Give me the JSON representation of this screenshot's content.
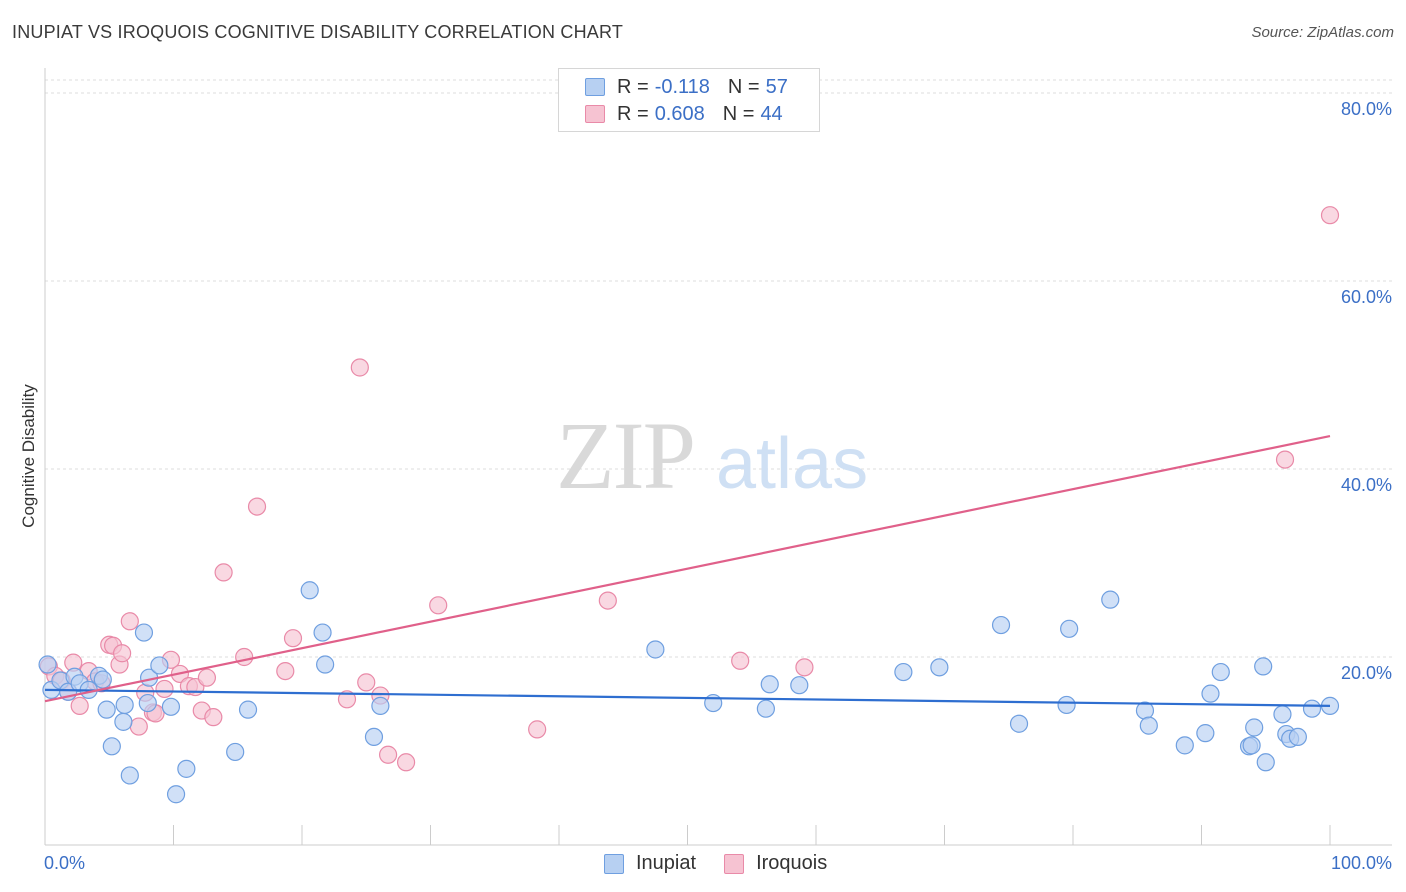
{
  "header": {
    "title": "INUPIAT VS IROQUOIS COGNITIVE DISABILITY CORRELATION CHART",
    "source": "Source: ZipAtlas.com"
  },
  "watermark": {
    "zip": "ZIP",
    "atlas": "atlas"
  },
  "legend": {
    "rows": [
      {
        "r_label": "R =",
        "r_value": "-0.118",
        "n_label": "N =",
        "n_value": "57"
      },
      {
        "r_label": "R =",
        "r_value": "0.608",
        "n_label": "N =",
        "n_value": "44"
      }
    ]
  },
  "bottom_legend": {
    "inupiat": "Inupiat",
    "iroquois": "Iroquois"
  },
  "colors": {
    "inupiat_fill": "#b7d0f2",
    "inupiat_stroke": "#6f9fe0",
    "inupiat_line": "#2e6ed0",
    "iroquois_fill": "#f6c3d2",
    "iroquois_stroke": "#e98aa8",
    "iroquois_line": "#e0608a",
    "axis_text": "#3b6fc6",
    "grid": "#dddddd"
  },
  "chart_data": {
    "type": "scatter",
    "title": "INUPIAT VS IROQUOIS COGNITIVE DISABILITY CORRELATION CHART",
    "xlabel": "",
    "ylabel": "Cognitive Disability",
    "xlim": [
      0,
      100
    ],
    "ylim": [
      0,
      80
    ],
    "x_tick_labels": [
      "0.0%",
      "100.0%"
    ],
    "y_ticks": [
      20,
      40,
      60,
      80
    ],
    "y_tick_labels": [
      "20.0%",
      "40.0%",
      "60.0%",
      "80.0%"
    ],
    "grid": true,
    "legend_position": "top-center",
    "series": [
      {
        "name": "Inupiat",
        "r": -0.118,
        "n": 57,
        "trend": {
          "x": [
            0,
            100
          ],
          "y": [
            16.5,
            14.8
          ]
        },
        "points": [
          [
            0.2,
            19.2
          ],
          [
            0.5,
            16.5
          ],
          [
            1.2,
            17.5
          ],
          [
            1.8,
            16.3
          ],
          [
            2.3,
            17.9
          ],
          [
            2.7,
            17.2
          ],
          [
            3.4,
            16.5
          ],
          [
            4.2,
            18.0
          ],
          [
            4.5,
            17.6
          ],
          [
            4.8,
            14.4
          ],
          [
            5.2,
            10.5
          ],
          [
            6.1,
            13.1
          ],
          [
            6.2,
            14.9
          ],
          [
            6.6,
            7.4
          ],
          [
            7.7,
            22.6
          ],
          [
            8.0,
            15.1
          ],
          [
            8.1,
            17.8
          ],
          [
            8.9,
            19.1
          ],
          [
            9.8,
            14.7
          ],
          [
            10.2,
            5.4
          ],
          [
            11.0,
            8.1
          ],
          [
            14.8,
            9.9
          ],
          [
            15.8,
            14.4
          ],
          [
            20.6,
            27.1
          ],
          [
            21.6,
            22.6
          ],
          [
            21.8,
            19.2
          ],
          [
            25.6,
            11.5
          ],
          [
            26.1,
            14.8
          ],
          [
            47.5,
            20.8
          ],
          [
            52.0,
            15.1
          ],
          [
            56.1,
            14.5
          ],
          [
            56.4,
            17.1
          ],
          [
            58.7,
            17.0
          ],
          [
            66.8,
            18.4
          ],
          [
            69.6,
            18.9
          ],
          [
            74.4,
            23.4
          ],
          [
            75.8,
            12.9
          ],
          [
            79.5,
            14.9
          ],
          [
            79.7,
            23.0
          ],
          [
            82.9,
            26.1
          ],
          [
            85.6,
            14.3
          ],
          [
            85.9,
            12.7
          ],
          [
            88.7,
            10.6
          ],
          [
            90.3,
            11.9
          ],
          [
            90.7,
            16.1
          ],
          [
            91.5,
            18.4
          ],
          [
            93.7,
            10.5
          ],
          [
            93.9,
            10.6
          ],
          [
            94.1,
            12.5
          ],
          [
            94.8,
            19.0
          ],
          [
            95.0,
            8.8
          ],
          [
            96.3,
            13.9
          ],
          [
            96.6,
            11.8
          ],
          [
            96.9,
            11.3
          ],
          [
            97.5,
            11.5
          ],
          [
            98.6,
            14.5
          ],
          [
            100.0,
            14.8
          ]
        ]
      },
      {
        "name": "Iroquois",
        "r": 0.608,
        "n": 44,
        "trend": {
          "x": [
            0,
            100
          ],
          "y": [
            15.3,
            43.5
          ]
        },
        "points": [
          [
            0.3,
            19.0
          ],
          [
            0.8,
            18.0
          ],
          [
            1.3,
            17.5
          ],
          [
            1.8,
            16.3
          ],
          [
            2.2,
            19.4
          ],
          [
            2.7,
            14.8
          ],
          [
            3.4,
            18.5
          ],
          [
            3.9,
            17.4
          ],
          [
            4.4,
            17.2
          ],
          [
            5.0,
            21.3
          ],
          [
            5.3,
            21.2
          ],
          [
            5.8,
            19.2
          ],
          [
            6.0,
            20.4
          ],
          [
            6.6,
            23.8
          ],
          [
            7.3,
            12.6
          ],
          [
            7.8,
            16.2
          ],
          [
            8.4,
            14.1
          ],
          [
            8.6,
            14.0
          ],
          [
            9.3,
            16.6
          ],
          [
            9.8,
            19.7
          ],
          [
            10.5,
            18.2
          ],
          [
            11.2,
            16.9
          ],
          [
            11.7,
            16.8
          ],
          [
            12.2,
            14.3
          ],
          [
            12.6,
            17.8
          ],
          [
            13.1,
            13.6
          ],
          [
            13.9,
            29.0
          ],
          [
            15.5,
            20.0
          ],
          [
            16.5,
            36.0
          ],
          [
            18.7,
            18.5
          ],
          [
            19.3,
            22.0
          ],
          [
            23.5,
            15.5
          ],
          [
            24.5,
            50.8
          ],
          [
            25.0,
            17.3
          ],
          [
            26.1,
            15.9
          ],
          [
            26.7,
            9.6
          ],
          [
            28.1,
            8.8
          ],
          [
            30.6,
            25.5
          ],
          [
            38.3,
            12.3
          ],
          [
            43.8,
            26.0
          ],
          [
            54.1,
            19.6
          ],
          [
            59.1,
            18.9
          ],
          [
            96.5,
            41.0
          ],
          [
            100.0,
            67.0
          ]
        ]
      }
    ]
  }
}
